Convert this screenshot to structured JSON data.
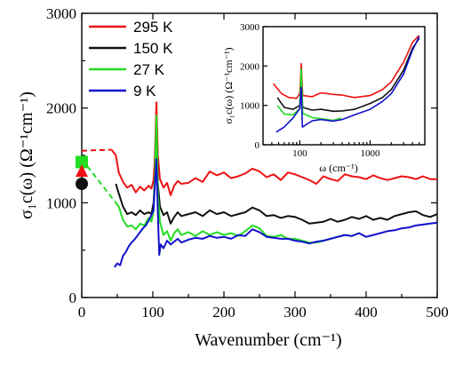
{
  "chart_data": {
    "type": "line",
    "xlabel": "Wavenumber (cm⁻¹)",
    "ylabel": "σ₁c(ω) (Ω⁻¹cm⁻¹)",
    "xlim": [
      0,
      500
    ],
    "ylim": [
      0,
      3000
    ],
    "x_ticks": [
      "0",
      "100",
      "200",
      "300",
      "400",
      "500"
    ],
    "y_ticks": [
      "0",
      "1000",
      "2000",
      "3000"
    ],
    "legend_position": "top-left",
    "series": [
      {
        "name": "295 K",
        "color": "#ee1111",
        "points": [
          [
            42,
            1560
          ],
          [
            48,
            1500
          ],
          [
            52,
            1320
          ],
          [
            58,
            1220
          ],
          [
            64,
            1160
          ],
          [
            70,
            1190
          ],
          [
            76,
            1110
          ],
          [
            82,
            1170
          ],
          [
            88,
            1130
          ],
          [
            94,
            1180
          ],
          [
            98,
            1150
          ],
          [
            101,
            1240
          ],
          [
            103,
            1500
          ],
          [
            105,
            2060
          ],
          [
            107,
            1500
          ],
          [
            110,
            1250
          ],
          [
            115,
            1160
          ],
          [
            120,
            1210
          ],
          [
            125,
            1080
          ],
          [
            130,
            1180
          ],
          [
            135,
            1230
          ],
          [
            140,
            1200
          ],
          [
            150,
            1210
          ],
          [
            160,
            1260
          ],
          [
            170,
            1220
          ],
          [
            180,
            1330
          ],
          [
            190,
            1290
          ],
          [
            200,
            1320
          ],
          [
            210,
            1260
          ],
          [
            220,
            1280
          ],
          [
            230,
            1310
          ],
          [
            240,
            1360
          ],
          [
            250,
            1330
          ],
          [
            260,
            1270
          ],
          [
            270,
            1300
          ],
          [
            280,
            1240
          ],
          [
            290,
            1320
          ],
          [
            300,
            1300
          ],
          [
            310,
            1270
          ],
          [
            320,
            1240
          ],
          [
            330,
            1200
          ],
          [
            340,
            1280
          ],
          [
            350,
            1250
          ],
          [
            360,
            1230
          ],
          [
            370,
            1300
          ],
          [
            380,
            1280
          ],
          [
            390,
            1270
          ],
          [
            400,
            1250
          ],
          [
            410,
            1290
          ],
          [
            420,
            1260
          ],
          [
            430,
            1240
          ],
          [
            440,
            1260
          ],
          [
            450,
            1280
          ],
          [
            460,
            1270
          ],
          [
            470,
            1250
          ],
          [
            480,
            1280
          ],
          [
            490,
            1250
          ],
          [
            500,
            1250
          ]
        ]
      },
      {
        "name": "150 K",
        "color": "#111111",
        "points": [
          [
            48,
            1200
          ],
          [
            52,
            1100
          ],
          [
            58,
            960
          ],
          [
            64,
            880
          ],
          [
            70,
            900
          ],
          [
            76,
            870
          ],
          [
            82,
            920
          ],
          [
            88,
            880
          ],
          [
            94,
            900
          ],
          [
            98,
            880
          ],
          [
            101,
            1000
          ],
          [
            103,
            1300
          ],
          [
            105,
            1850
          ],
          [
            107,
            1200
          ],
          [
            110,
            960
          ],
          [
            115,
            870
          ],
          [
            120,
            900
          ],
          [
            125,
            780
          ],
          [
            130,
            850
          ],
          [
            135,
            900
          ],
          [
            140,
            860
          ],
          [
            150,
            880
          ],
          [
            160,
            900
          ],
          [
            170,
            860
          ],
          [
            180,
            920
          ],
          [
            190,
            880
          ],
          [
            200,
            900
          ],
          [
            210,
            860
          ],
          [
            220,
            880
          ],
          [
            230,
            900
          ],
          [
            240,
            950
          ],
          [
            250,
            920
          ],
          [
            260,
            860
          ],
          [
            270,
            870
          ],
          [
            280,
            840
          ],
          [
            290,
            860
          ],
          [
            300,
            850
          ],
          [
            310,
            820
          ],
          [
            320,
            780
          ],
          [
            330,
            790
          ],
          [
            340,
            800
          ],
          [
            350,
            830
          ],
          [
            360,
            800
          ],
          [
            370,
            820
          ],
          [
            380,
            850
          ],
          [
            390,
            830
          ],
          [
            400,
            860
          ],
          [
            410,
            820
          ],
          [
            420,
            840
          ],
          [
            430,
            820
          ],
          [
            440,
            860
          ],
          [
            450,
            880
          ],
          [
            460,
            900
          ],
          [
            470,
            910
          ],
          [
            480,
            870
          ],
          [
            490,
            850
          ],
          [
            500,
            880
          ]
        ]
      },
      {
        "name": "27 K",
        "color": "#22dd22",
        "points": [
          [
            48,
            1000
          ],
          [
            52,
            960
          ],
          [
            58,
            820
          ],
          [
            64,
            750
          ],
          [
            70,
            760
          ],
          [
            76,
            720
          ],
          [
            82,
            780
          ],
          [
            88,
            760
          ],
          [
            94,
            840
          ],
          [
            98,
            800
          ],
          [
            101,
            920
          ],
          [
            103,
            1300
          ],
          [
            105,
            1920
          ],
          [
            107,
            1100
          ],
          [
            110,
            800
          ],
          [
            115,
            660
          ],
          [
            120,
            700
          ],
          [
            125,
            600
          ],
          [
            130,
            680
          ],
          [
            135,
            720
          ],
          [
            140,
            660
          ],
          [
            150,
            690
          ],
          [
            160,
            650
          ],
          [
            170,
            700
          ],
          [
            180,
            660
          ],
          [
            190,
            690
          ],
          [
            200,
            660
          ],
          [
            210,
            680
          ],
          [
            220,
            650
          ],
          [
            230,
            700
          ],
          [
            240,
            760
          ],
          [
            250,
            730
          ],
          [
            260,
            650
          ],
          [
            270,
            640
          ],
          [
            280,
            660
          ],
          [
            290,
            620
          ],
          [
            300,
            620
          ],
          [
            310,
            600
          ],
          [
            320,
            580
          ],
          [
            330,
            580
          ],
          [
            340,
            600
          ],
          [
            350,
            620
          ],
          [
            360,
            640
          ],
          [
            370,
            660
          ],
          [
            380,
            650
          ],
          [
            390,
            680
          ]
        ]
      },
      {
        "name": "9 K",
        "color": "#1111cc",
        "points": [
          [
            46,
            320
          ],
          [
            50,
            360
          ],
          [
            54,
            340
          ],
          [
            58,
            440
          ],
          [
            62,
            480
          ],
          [
            66,
            540
          ],
          [
            70,
            580
          ],
          [
            74,
            610
          ],
          [
            78,
            650
          ],
          [
            82,
            690
          ],
          [
            86,
            730
          ],
          [
            90,
            760
          ],
          [
            94,
            810
          ],
          [
            98,
            870
          ],
          [
            101,
            920
          ],
          [
            103,
            1200
          ],
          [
            105,
            1460
          ],
          [
            107,
            900
          ],
          [
            109,
            450
          ],
          [
            111,
            560
          ],
          [
            115,
            520
          ],
          [
            120,
            600
          ],
          [
            125,
            560
          ],
          [
            130,
            590
          ],
          [
            135,
            620
          ],
          [
            140,
            580
          ],
          [
            150,
            610
          ],
          [
            160,
            630
          ],
          [
            170,
            620
          ],
          [
            180,
            650
          ],
          [
            190,
            630
          ],
          [
            200,
            640
          ],
          [
            210,
            620
          ],
          [
            220,
            660
          ],
          [
            230,
            650
          ],
          [
            240,
            720
          ],
          [
            250,
            690
          ],
          [
            260,
            640
          ],
          [
            270,
            630
          ],
          [
            280,
            620
          ],
          [
            290,
            620
          ],
          [
            300,
            600
          ],
          [
            310,
            590
          ],
          [
            320,
            570
          ],
          [
            330,
            590
          ],
          [
            340,
            600
          ],
          [
            350,
            620
          ],
          [
            360,
            640
          ],
          [
            370,
            660
          ],
          [
            380,
            650
          ],
          [
            390,
            680
          ],
          [
            400,
            640
          ],
          [
            410,
            660
          ],
          [
            420,
            680
          ],
          [
            430,
            700
          ],
          [
            440,
            710
          ],
          [
            450,
            730
          ],
          [
            460,
            740
          ],
          [
            470,
            760
          ],
          [
            480,
            770
          ],
          [
            490,
            780
          ],
          [
            500,
            790
          ]
        ]
      }
    ],
    "extrapolations": [
      {
        "color": "#22dd22",
        "points": [
          [
            0,
            1460
          ],
          [
            48,
            1000
          ]
        ]
      },
      {
        "color": "#ee1111",
        "points": [
          [
            0,
            1550
          ],
          [
            42,
            1560
          ]
        ]
      }
    ],
    "markers": [
      {
        "shape": "square",
        "color": "#22dd22",
        "x": 0,
        "y": 1430
      },
      {
        "shape": "triangle",
        "color": "#ee1111",
        "x": 0,
        "y": 1330
      },
      {
        "shape": "circle",
        "color": "#111111",
        "x": 0,
        "y": 1200
      }
    ],
    "inset": {
      "xlabel": "ω (cm⁻¹)",
      "ylabel": "σ₁c(ω) (Ω⁻¹cm⁻¹)",
      "xscale": "log",
      "xlim": [
        30,
        6000
      ],
      "ylim": [
        0,
        3000
      ],
      "x_ticks": [
        "100",
        "1000"
      ],
      "x_tick_values": [
        100,
        1000
      ],
      "y_ticks": [
        "0",
        "1000",
        "2000",
        "3000"
      ],
      "series": [
        {
          "color": "#ee1111",
          "points": [
            [
              42,
              1550
            ],
            [
              55,
              1300
            ],
            [
              70,
              1200
            ],
            [
              90,
              1180
            ],
            [
              100,
              1300
            ],
            [
              105,
              2060
            ],
            [
              110,
              1250
            ],
            [
              150,
              1220
            ],
            [
              200,
              1320
            ],
            [
              300,
              1280
            ],
            [
              400,
              1260
            ],
            [
              600,
              1200
            ],
            [
              1000,
              1250
            ],
            [
              1500,
              1400
            ],
            [
              2000,
              1600
            ],
            [
              3000,
              2100
            ],
            [
              4000,
              2600
            ],
            [
              5000,
              2780
            ]
          ]
        },
        {
          "color": "#111111",
          "points": [
            [
              48,
              1200
            ],
            [
              60,
              950
            ],
            [
              80,
              900
            ],
            [
              100,
              1000
            ],
            [
              105,
              1850
            ],
            [
              110,
              950
            ],
            [
              150,
              880
            ],
            [
              200,
              900
            ],
            [
              300,
              850
            ],
            [
              400,
              860
            ],
            [
              600,
              900
            ],
            [
              1000,
              1050
            ],
            [
              1500,
              1200
            ],
            [
              2000,
              1400
            ],
            [
              3000,
              1900
            ],
            [
              4000,
              2450
            ],
            [
              5000,
              2700
            ]
          ]
        },
        {
          "color": "#22dd22",
          "points": [
            [
              48,
              1000
            ],
            [
              60,
              780
            ],
            [
              80,
              760
            ],
            [
              100,
              920
            ],
            [
              105,
              1920
            ],
            [
              110,
              800
            ],
            [
              150,
              690
            ],
            [
              200,
              660
            ],
            [
              300,
              620
            ],
            [
              390,
              680
            ]
          ]
        },
        {
          "color": "#1111cc",
          "points": [
            [
              46,
              320
            ],
            [
              60,
              450
            ],
            [
              80,
              680
            ],
            [
              100,
              920
            ],
            [
              105,
              1460
            ],
            [
              109,
              450
            ],
            [
              150,
              610
            ],
            [
              200,
              640
            ],
            [
              300,
              600
            ],
            [
              400,
              640
            ],
            [
              600,
              760
            ],
            [
              1000,
              900
            ],
            [
              1500,
              1100
            ],
            [
              2000,
              1300
            ],
            [
              3000,
              1800
            ],
            [
              4000,
              2400
            ],
            [
              5000,
              2750
            ]
          ]
        }
      ]
    }
  }
}
